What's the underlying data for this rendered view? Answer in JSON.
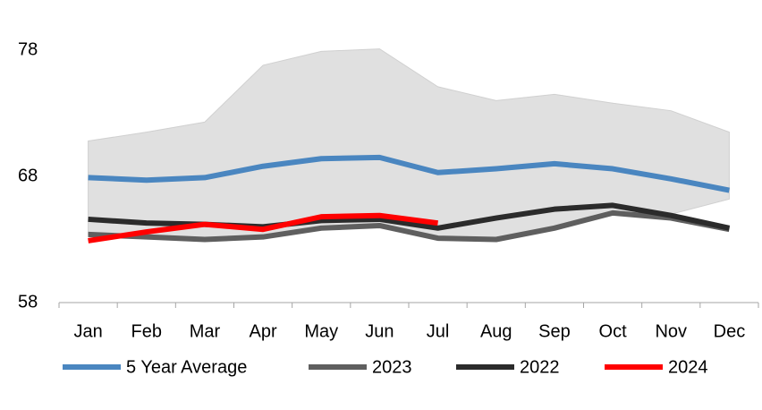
{
  "chart_data": {
    "type": "line",
    "categories": [
      "Jan",
      "Feb",
      "Mar",
      "Apr",
      "May",
      "Jun",
      "Jul",
      "Aug",
      "Sep",
      "Oct",
      "Nov",
      "Dec"
    ],
    "band": {
      "color": "#e0e0e0",
      "upper": [
        70.8,
        71.5,
        72.3,
        76.8,
        77.9,
        78.1,
        75.1,
        74.0,
        74.5,
        73.8,
        73.2,
        71.5
      ],
      "lower": [
        63.4,
        63.2,
        63.0,
        63.2,
        63.8,
        64.0,
        63.1,
        63.0,
        63.9,
        65.1,
        65.0,
        66.2
      ]
    },
    "series": [
      {
        "name": "5 Year Average",
        "color": "#4a86c0",
        "values": [
          67.9,
          67.7,
          67.9,
          68.8,
          69.4,
          69.5,
          68.3,
          68.6,
          69.0,
          68.6,
          67.8,
          66.9
        ]
      },
      {
        "name": "2023",
        "color": "#5f5f5f",
        "values": [
          63.4,
          63.2,
          63.0,
          63.2,
          63.9,
          64.1,
          63.1,
          63.0,
          63.9,
          65.1,
          64.7,
          63.8
        ]
      },
      {
        "name": "2022",
        "color": "#2b2b2b",
        "values": [
          64.6,
          64.3,
          64.2,
          64.0,
          64.5,
          64.6,
          63.9,
          64.7,
          65.4,
          65.7,
          64.9,
          63.9
        ]
      },
      {
        "name": "2024",
        "color": "#ff0000",
        "values": [
          62.9,
          63.6,
          64.2,
          63.8,
          64.8,
          64.9,
          64.3,
          null,
          null,
          null,
          null,
          null
        ]
      }
    ],
    "ylim": [
      58,
      78
    ],
    "yticks": [
      58,
      68,
      78
    ],
    "grid": false,
    "legend": "bottom"
  }
}
